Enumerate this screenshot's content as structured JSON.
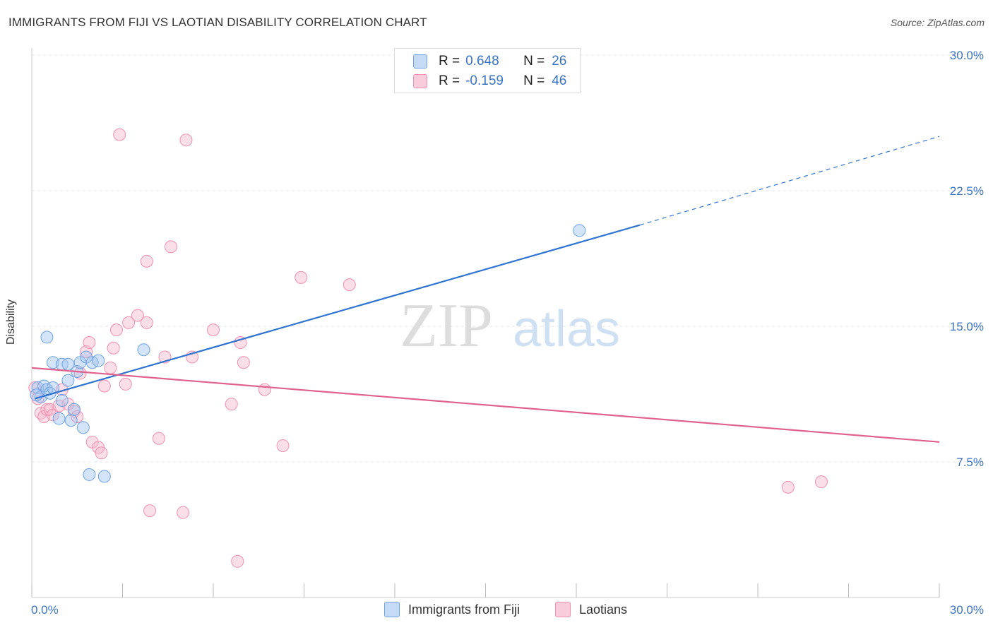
{
  "header": {
    "title": "IMMIGRANTS FROM FIJI VS LAOTIAN DISABILITY CORRELATION CHART",
    "source": "Source: ZipAtlas.com"
  },
  "watermark": {
    "zip": "ZIP",
    "atlas": "atlas"
  },
  "legend": {
    "rows": [
      {
        "r_label": "R =",
        "r_value": "0.648",
        "n_label": "N =",
        "n_value": "26",
        "color": "#6fa3e6"
      },
      {
        "r_label": "R =",
        "r_value": "-0.159",
        "n_label": "N =",
        "n_value": "46",
        "color": "#f090b0"
      }
    ]
  },
  "bottom_legend": {
    "series1": "Immigrants from Fiji",
    "series2": "Laotians"
  },
  "chart_data": {
    "type": "scatter",
    "title": "IMMIGRANTS FROM FIJI VS LAOTIAN DISABILITY CORRELATION CHART",
    "xlabel": "",
    "ylabel": "Disability",
    "xlim": [
      0,
      30
    ],
    "ylim": [
      0,
      30
    ],
    "x_ticks": [
      "0.0%",
      "30.0%"
    ],
    "y_ticks": [
      "7.5%",
      "15.0%",
      "22.5%",
      "30.0%"
    ],
    "y_tick_values": [
      7.5,
      15.0,
      22.5,
      30.0
    ],
    "grid": true,
    "legend_position": "top-center",
    "colors": {
      "fiji": "#6fa3e6",
      "fiji_line": "#2f74d0",
      "laotians": "#f090b0",
      "laotians_line": "#e0608e",
      "tick_text": "#3b73c6"
    },
    "series": [
      {
        "name": "Immigrants from Fiji",
        "points": [
          [
            0.2,
            11.6
          ],
          [
            0.3,
            11.1
          ],
          [
            0.4,
            11.7
          ],
          [
            0.5,
            11.5
          ],
          [
            0.5,
            14.4
          ],
          [
            0.6,
            11.3
          ],
          [
            0.7,
            13.0
          ],
          [
            0.7,
            11.6
          ],
          [
            0.9,
            9.9
          ],
          [
            1.0,
            12.9
          ],
          [
            1.0,
            10.9
          ],
          [
            1.2,
            12.9
          ],
          [
            1.2,
            12.0
          ],
          [
            1.3,
            9.8
          ],
          [
            1.4,
            10.4
          ],
          [
            1.5,
            12.5
          ],
          [
            1.6,
            13.0
          ],
          [
            1.7,
            9.4
          ],
          [
            1.8,
            13.3
          ],
          [
            1.9,
            6.8
          ],
          [
            2.0,
            13.0
          ],
          [
            2.2,
            13.1
          ],
          [
            2.4,
            6.7
          ],
          [
            3.7,
            13.7
          ],
          [
            18.1,
            20.3
          ],
          [
            0.15,
            11.2
          ]
        ],
        "trend": {
          "x": [
            0.1,
            20.1
          ],
          "y": [
            11.0,
            20.6
          ],
          "dashed_to": [
            30.0,
            25.5
          ]
        }
      },
      {
        "name": "Laotians",
        "points": [
          [
            0.1,
            11.6
          ],
          [
            0.3,
            10.2
          ],
          [
            0.4,
            10.0
          ],
          [
            0.5,
            10.4
          ],
          [
            0.6,
            10.4
          ],
          [
            0.7,
            10.1
          ],
          [
            0.9,
            10.6
          ],
          [
            1.0,
            11.5
          ],
          [
            1.2,
            10.7
          ],
          [
            1.4,
            10.3
          ],
          [
            1.5,
            10.0
          ],
          [
            1.6,
            12.4
          ],
          [
            1.8,
            13.6
          ],
          [
            1.9,
            14.1
          ],
          [
            2.0,
            8.6
          ],
          [
            2.2,
            8.3
          ],
          [
            2.3,
            8.0
          ],
          [
            2.4,
            11.7
          ],
          [
            2.6,
            12.7
          ],
          [
            2.7,
            13.8
          ],
          [
            2.8,
            14.8
          ],
          [
            2.9,
            25.6
          ],
          [
            3.1,
            11.8
          ],
          [
            3.2,
            15.2
          ],
          [
            3.5,
            15.6
          ],
          [
            3.8,
            15.2
          ],
          [
            3.8,
            18.6
          ],
          [
            3.9,
            4.8
          ],
          [
            4.2,
            8.8
          ],
          [
            4.4,
            13.3
          ],
          [
            4.6,
            19.4
          ],
          [
            5.0,
            4.7
          ],
          [
            5.1,
            25.3
          ],
          [
            5.3,
            13.3
          ],
          [
            6.0,
            14.8
          ],
          [
            6.6,
            10.7
          ],
          [
            6.8,
            2.0
          ],
          [
            6.9,
            14.1
          ],
          [
            7.0,
            13.0
          ],
          [
            7.7,
            11.5
          ],
          [
            8.3,
            8.4
          ],
          [
            8.9,
            17.7
          ],
          [
            10.5,
            17.3
          ],
          [
            25.0,
            6.1
          ],
          [
            26.1,
            6.4
          ],
          [
            0.2,
            11.0
          ]
        ],
        "trend": {
          "x": [
            0.0,
            30.0
          ],
          "y": [
            12.7,
            8.6
          ]
        }
      }
    ]
  }
}
